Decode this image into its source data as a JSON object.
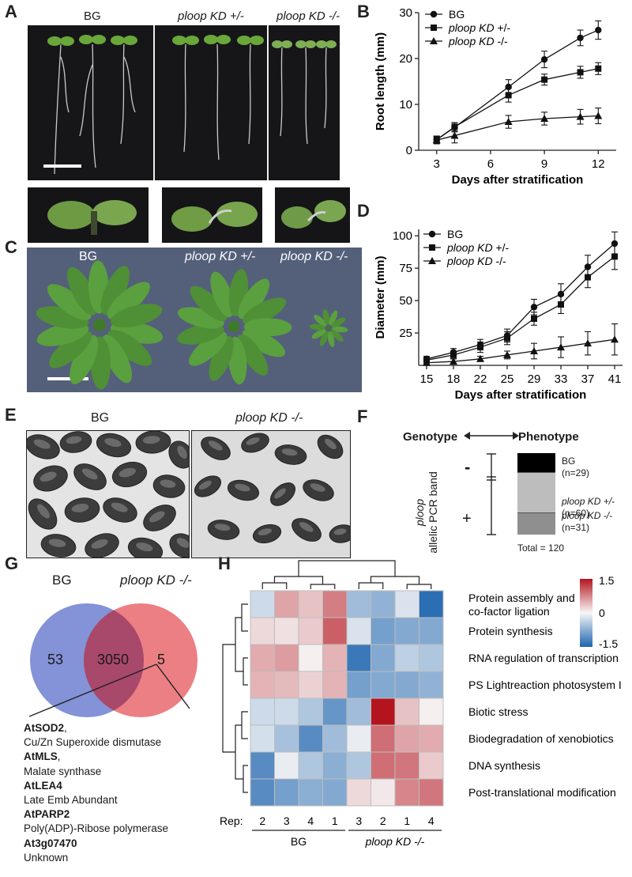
{
  "panelA": {
    "letter": "A",
    "labels": [
      "BG",
      "ploop KD +/-",
      "ploop KD -/-"
    ]
  },
  "panelB": {
    "letter": "B"
  },
  "panelC": {
    "letter": "C",
    "labels": [
      "BG",
      "ploop KD +/-",
      "ploop KD -/-"
    ]
  },
  "panelD": {
    "letter": "D"
  },
  "panelE": {
    "letter": "E",
    "labels": [
      "BG",
      "ploop KD -/-"
    ]
  },
  "panelF": {
    "letter": "F",
    "genotype": "Genotype",
    "phenotype": "Phenotype",
    "axis_line1": "ploop",
    "axis_line2": "allelic PCR band",
    "minus": "-",
    "plus": "+",
    "bars": [
      {
        "name": "BG",
        "n": "(n=29)",
        "count": 29,
        "color": "#000000"
      },
      {
        "name": "ploop KD +/-",
        "n": "(n=60)",
        "count": 60,
        "color": "#bdbdbd"
      },
      {
        "name": "ploop KD -/-",
        "n": "(n=31)",
        "count": 31,
        "color": "#8f8f8f"
      }
    ],
    "total": "Total = 120"
  },
  "panelG": {
    "letter": "G",
    "set1": "BG",
    "set2": "ploop KD -/-",
    "only1": "53",
    "both": "3050",
    "only2": "5",
    "genes": [
      {
        "name": "AtSOD2",
        "suffix": ",",
        "desc": "Cu/Zn Superoxide dismutase"
      },
      {
        "name": "AtMLS",
        "suffix": ",",
        "desc": "Malate synthase"
      },
      {
        "name": "AtLEA4",
        "suffix": "",
        "desc": "Late Emb Abundant"
      },
      {
        "name": "AtPARP2",
        "suffix": "",
        "desc": "Poly(ADP)-Ribose polymerase"
      },
      {
        "name": "At3g07470",
        "suffix": "",
        "desc": "Unknown"
      }
    ],
    "colors": {
      "set1": "#6f7fd0",
      "set2": "#e8696e",
      "overlap": "#a8486a"
    }
  },
  "panelH": {
    "letter": "H",
    "rep_label": "Rep:",
    "reps": [
      "2",
      "3",
      "4",
      "1",
      "3",
      "2",
      "1",
      "4"
    ],
    "group1": "BG",
    "group2": "ploop KD -/-",
    "rows": [
      "Protein assembly and co-factor ligation",
      "Protein synthesis",
      "RNA regulation of transcription",
      "PS Lightreaction photosystem I",
      "Biotic stress",
      "Biodegradation of xenobiotics",
      "DNA synthesis",
      "Post-translational modification"
    ],
    "values": [
      [
        -0.3,
        0.55,
        0.35,
        0.8,
        -0.6,
        -0.7,
        -0.2,
        -1.4
      ],
      [
        0.2,
        0.15,
        0.3,
        1.0,
        -0.2,
        -0.9,
        -0.8,
        -0.8
      ],
      [
        0.5,
        0.6,
        0.05,
        0.45,
        -1.3,
        -0.8,
        -0.4,
        -0.5
      ],
      [
        0.45,
        0.4,
        0.25,
        0.45,
        -0.9,
        -0.8,
        -0.8,
        -0.7
      ],
      [
        -0.3,
        -0.3,
        -0.5,
        -1.0,
        -0.6,
        1.5,
        0.35,
        0.05
      ],
      [
        -0.25,
        -0.55,
        -1.1,
        -0.6,
        -0.1,
        0.9,
        0.55,
        0.5
      ],
      [
        -1.1,
        -0.1,
        -0.5,
        -0.75,
        -0.5,
        0.9,
        0.85,
        0.3
      ],
      [
        -1.1,
        -0.9,
        -0.75,
        -0.8,
        0.2,
        0.1,
        0.75,
        0.85
      ]
    ],
    "scale_max": "1.5",
    "scale_mid": "0",
    "scale_min": "-1.5"
  },
  "chart_data": [
    {
      "type": "line",
      "title": "",
      "xlabel": "Days after stratification",
      "ylabel": "Root length (mm)",
      "xlim": [
        2,
        13
      ],
      "ylim": [
        0,
        30
      ],
      "xticks": [
        "3",
        "6",
        "9",
        "12"
      ],
      "yticks": [
        "0",
        "10",
        "20",
        "30"
      ],
      "legend": "top-left",
      "series": [
        {
          "name": "BG",
          "marker": "circle",
          "x": [
            3,
            4,
            7,
            9,
            11,
            12
          ],
          "y": [
            2.3,
            5.0,
            13.8,
            19.8,
            24.5,
            26.2
          ],
          "err": [
            0.8,
            1.0,
            1.6,
            1.8,
            1.7,
            2.0
          ]
        },
        {
          "name": "ploop KD +/-",
          "marker": "square",
          "x": [
            3,
            4,
            7,
            9,
            11,
            12
          ],
          "y": [
            2.3,
            5.1,
            12.0,
            15.4,
            17.0,
            17.8
          ],
          "err": [
            0.8,
            0.9,
            1.5,
            1.2,
            1.3,
            1.3
          ]
        },
        {
          "name": "ploop KD -/-",
          "marker": "triangle",
          "x": [
            3,
            4,
            7,
            9,
            11,
            12
          ],
          "y": [
            2.2,
            3.2,
            6.2,
            6.9,
            7.3,
            7.5
          ],
          "err": [
            0.8,
            1.6,
            1.4,
            1.4,
            1.6,
            1.7
          ]
        }
      ]
    },
    {
      "type": "line",
      "title": "",
      "xlabel": "Days after stratification",
      "ylabel": "Diameter (mm)",
      "categories": [
        "15",
        "18",
        "22",
        "25",
        "29",
        "33",
        "37",
        "41"
      ],
      "ylim": [
        0,
        105
      ],
      "yticks": [
        "25",
        "50",
        "75",
        "100"
      ],
      "legend": "top-left",
      "series": [
        {
          "name": "BG",
          "marker": "circle",
          "values": [
            5,
            10,
            16,
            23,
            45,
            55,
            76,
            94
          ],
          "err": [
            2,
            3,
            4,
            5,
            6,
            8,
            9,
            9
          ]
        },
        {
          "name": "ploop KD +/-",
          "marker": "square",
          "values": [
            4,
            8,
            14,
            21,
            36,
            47,
            68,
            84
          ],
          "err": [
            2,
            3,
            4,
            5,
            5,
            7,
            8,
            10
          ]
        },
        {
          "name": "ploop KD -/-",
          "marker": "triangle",
          "values": [
            2,
            3,
            5,
            8,
            11,
            14,
            17,
            20
          ],
          "err": [
            1,
            2,
            2,
            3,
            6,
            8,
            9,
            12
          ]
        }
      ]
    }
  ]
}
